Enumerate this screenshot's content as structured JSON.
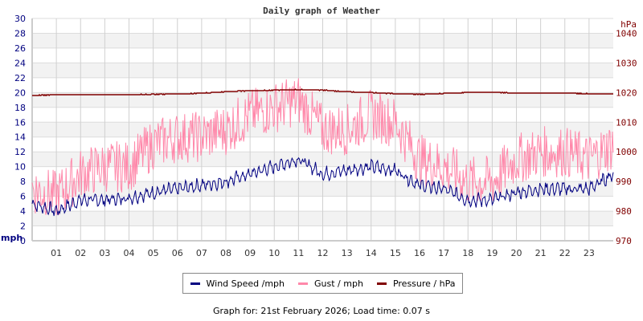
{
  "chart_data": {
    "type": "line",
    "title": "Daily graph of Weather",
    "xlabel": "",
    "ylabel": "mph",
    "ylabel_right": "hPa",
    "x_ticks": [
      "01",
      "02",
      "03",
      "04",
      "05",
      "06",
      "07",
      "08",
      "09",
      "10",
      "11",
      "12",
      "13",
      "14",
      "15",
      "16",
      "17",
      "18",
      "19",
      "20",
      "21",
      "22",
      "23"
    ],
    "ylim": [
      0,
      30
    ],
    "y_ticks": [
      0,
      2,
      4,
      6,
      8,
      10,
      12,
      14,
      16,
      18,
      20,
      22,
      24,
      26,
      28,
      30
    ],
    "ylim_right": [
      970,
      1045
    ],
    "y_ticks_right": [
      970,
      980,
      990,
      1000,
      1010,
      1020,
      1030,
      1040
    ],
    "grid": true,
    "legend_position": "bottom",
    "x": [
      0,
      1,
      2,
      3,
      4,
      5,
      6,
      7,
      8,
      9,
      10,
      11,
      12,
      13,
      14,
      15,
      16,
      17,
      18,
      19,
      20,
      21,
      22,
      23,
      24
    ],
    "series": [
      {
        "name": "Wind Speed /mph",
        "color": "#000080",
        "axis": "left",
        "values": [
          5,
          4,
          5.5,
          5.5,
          5.8,
          6.5,
          7,
          7.5,
          8,
          9,
          10,
          11,
          9,
          9.5,
          10,
          9.5,
          7.5,
          7,
          5.5,
          5.5,
          6.5,
          7,
          7,
          7,
          9
        ]
      },
      {
        "name": "Gust / mph",
        "color": "#ff88aa",
        "axis": "left",
        "values": [
          7,
          6,
          9,
          10,
          10,
          13,
          14,
          14,
          15,
          17,
          18,
          19,
          15,
          15,
          17,
          16,
          11,
          10,
          8,
          8,
          11,
          12,
          12,
          11,
          13
        ]
      },
      {
        "name": "Pressure / hPa",
        "color": "#800000",
        "axis": "right",
        "values": [
          1019,
          1019.3,
          1019.3,
          1019.3,
          1019.3,
          1019.4,
          1019.5,
          1019.8,
          1020.3,
          1020.6,
          1020.8,
          1021,
          1020.8,
          1020.3,
          1020,
          1019.6,
          1019.4,
          1019.7,
          1020,
          1020.1,
          1019.8,
          1019.9,
          1019.8,
          1019.6,
          1019.5
        ]
      }
    ]
  },
  "legend": {
    "wind": "Wind Speed /mph",
    "gust": "Gust / mph",
    "pressure": "Pressure / hPa"
  },
  "footer": "Graph for: 21st February 2026; Load time: 0.07 s"
}
